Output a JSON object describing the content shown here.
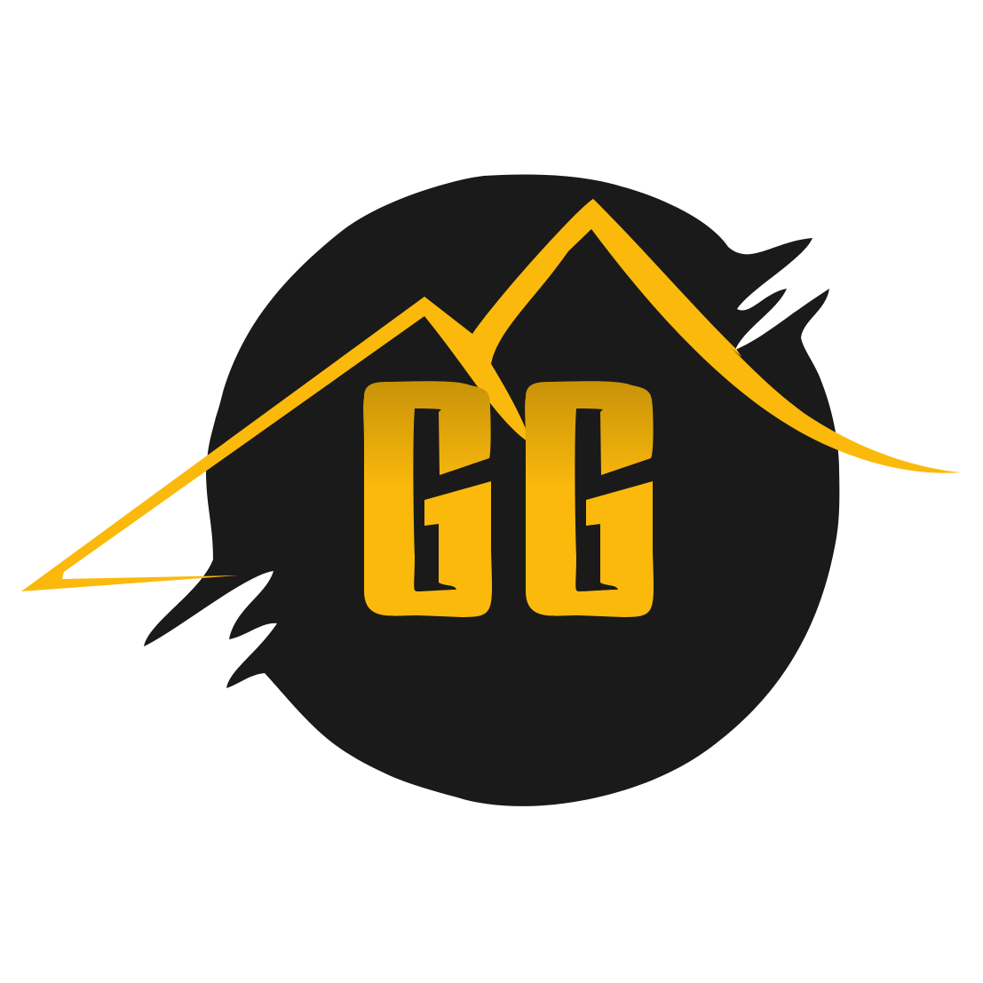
{
  "logo": {
    "lettering": "GG",
    "colors": {
      "background": "#ffffff",
      "blob": "#1a1a1a",
      "gold": "#fbb90c",
      "gold_dark": "#c8930a"
    },
    "icon": "roof-mountain-icon"
  }
}
